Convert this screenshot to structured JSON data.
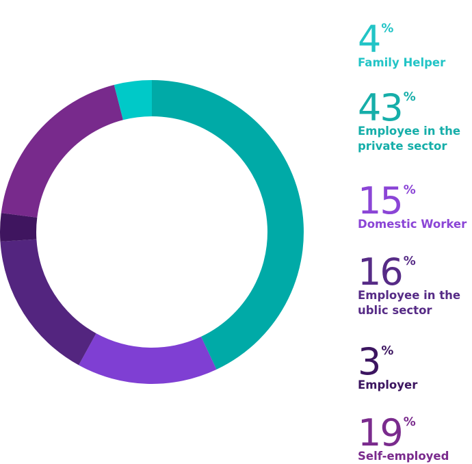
{
  "chart_data": {
    "type": "pie",
    "donut": true,
    "title": "",
    "legend_position": "right",
    "categories": [
      "Family Helper",
      "Employee in the private sector",
      "Domestic Worker",
      "Employee in the ublic sector",
      "Employer",
      "Self-employed"
    ],
    "values": [
      4,
      43,
      15,
      16,
      3,
      19
    ],
    "value_unit": "%",
    "colors": [
      "#00c9c8",
      "#00aaa7",
      "#7f3fd3",
      "#53257f",
      "#3f155f",
      "#782a8c"
    ],
    "chart_order": [
      "Employee in the private sector",
      "Domestic Worker",
      "Employee in the ublic sector",
      "Employer",
      "Self-employed",
      "Family Helper"
    ]
  },
  "legend": [
    {
      "value": "4",
      "percent_sign": "%",
      "label": "Family Helper",
      "color": "#22c4c6"
    },
    {
      "value": "43",
      "percent_sign": "%",
      "label": "Employee in the private sector",
      "color": "#16aea9"
    },
    {
      "value": "15",
      "percent_sign": "%",
      "label": "Domestic Worker",
      "color": "#8b45d6"
    },
    {
      "value": "16",
      "percent_sign": "%",
      "label": "Employee in the ublic sector",
      "color": "#562b86"
    },
    {
      "value": "3",
      "percent_sign": "%",
      "label": "Employer",
      "color": "#3c1560"
    },
    {
      "value": "19",
      "percent_sign": "%",
      "label": "Self-employed",
      "color": "#7a2b8d"
    }
  ]
}
